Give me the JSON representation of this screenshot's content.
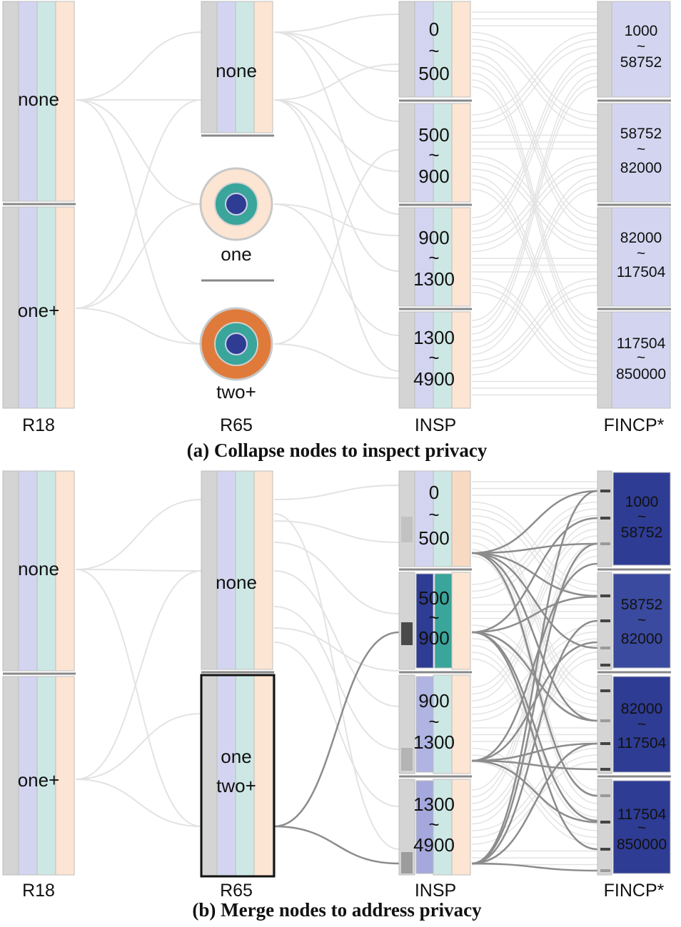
{
  "panel_a": {
    "caption": "(a) Collapse nodes to inspect privacy",
    "axes": [
      "R18",
      "R65",
      "INSP",
      "FINCP*"
    ],
    "r18_nodes": [
      "none",
      "one+"
    ],
    "r65_nodes": [
      "none",
      "one",
      "two+"
    ],
    "insp_nodes": [
      [
        "0",
        "~",
        "500"
      ],
      [
        "500",
        "~",
        "900"
      ],
      [
        "900",
        "~",
        "1300"
      ],
      [
        "1300",
        "~",
        "4900"
      ]
    ],
    "fincp_nodes": [
      [
        "1000",
        "~",
        "58752"
      ],
      [
        "58752",
        "~",
        "82000"
      ],
      [
        "82000",
        "~",
        "117504"
      ],
      [
        "117504",
        "~",
        "850000"
      ]
    ]
  },
  "panel_b": {
    "caption": "(b) Merge nodes to address privacy",
    "axes": [
      "R18",
      "R65",
      "INSP",
      "FINCP*"
    ],
    "r18_nodes": [
      "none",
      "one+"
    ],
    "r65_nodes": [
      "none",
      "one",
      "two+"
    ],
    "insp_nodes": [
      [
        "0",
        "~",
        "500"
      ],
      [
        "500",
        "~",
        "900"
      ],
      [
        "900",
        "~",
        "1300"
      ],
      [
        "1300",
        "~",
        "4900"
      ]
    ],
    "fincp_nodes": [
      [
        "1000",
        "~",
        "58752"
      ],
      [
        "58752",
        "~",
        "82000"
      ],
      [
        "82000",
        "~",
        "117504"
      ],
      [
        "117504",
        "~",
        "850000"
      ]
    ]
  },
  "colors": {
    "gray_bar": "#d4d4d4",
    "lavender": "#d3d5f0",
    "mint": "#cde8e4",
    "peach": "#fde5d3",
    "dark_blue": "#2e3c94",
    "teal": "#3aa59a",
    "orange": "#e07a3a",
    "link_light": "#e3e3e3",
    "link_dark": "#8c8c8c"
  }
}
